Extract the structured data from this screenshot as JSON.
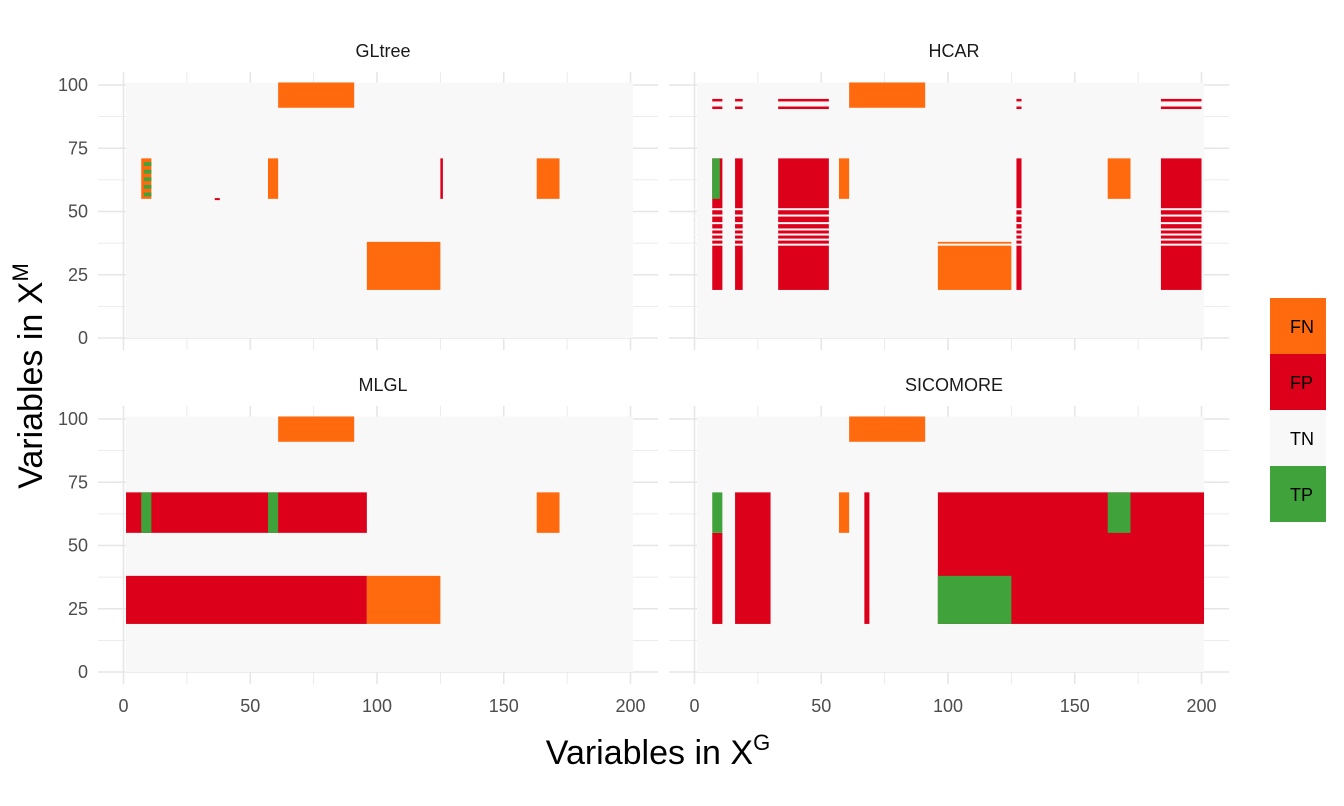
{
  "chart_data": {
    "type": "heatmap",
    "xlabel": "Variables in X",
    "xlabel_sup": "G",
    "ylabel": "Variables in X",
    "ylabel_sup": "M",
    "xlim": [
      0,
      200
    ],
    "ylim": [
      0,
      100
    ],
    "x_ticks": [
      0,
      50,
      100,
      150,
      200
    ],
    "y_ticks": [
      0,
      25,
      50,
      75,
      100
    ],
    "grid": true,
    "legend_position": "right",
    "categories": [
      "FN",
      "FP",
      "TN",
      "TP"
    ],
    "colors": {
      "FN": "#FF6A0F",
      "FP": "#DC001B",
      "TN": "#F8F8F8",
      "TP": "#3FA23A"
    },
    "panels": [
      {
        "title": "GLtree",
        "cells": [
          {
            "x0": 61,
            "x1": 91,
            "y0": 91,
            "y1": 101,
            "status": "FN"
          },
          {
            "x0": 7,
            "x1": 11,
            "y0": 55,
            "y1": 71,
            "status": "FN"
          },
          {
            "x0": 8,
            "x1": 11,
            "y0": 56,
            "y1": 57.5,
            "status": "TP"
          },
          {
            "x0": 8,
            "x1": 11,
            "y0": 59,
            "y1": 60.5,
            "status": "TP"
          },
          {
            "x0": 8,
            "x1": 11,
            "y0": 62,
            "y1": 63.5,
            "status": "TP"
          },
          {
            "x0": 8,
            "x1": 11,
            "y0": 65,
            "y1": 66.5,
            "status": "TP"
          },
          {
            "x0": 8,
            "x1": 11,
            "y0": 68,
            "y1": 69.5,
            "status": "TP"
          },
          {
            "x0": 57,
            "x1": 61,
            "y0": 55,
            "y1": 71,
            "status": "FN"
          },
          {
            "x0": 163,
            "x1": 172,
            "y0": 55,
            "y1": 71,
            "status": "FN"
          },
          {
            "x0": 125,
            "x1": 126,
            "y0": 55,
            "y1": 71,
            "status": "FP"
          },
          {
            "x0": 36,
            "x1": 38,
            "y0": 54.5,
            "y1": 55.3,
            "status": "FP"
          },
          {
            "x0": 96,
            "x1": 125,
            "y0": 19,
            "y1": 38,
            "status": "FN"
          }
        ]
      },
      {
        "title": "HCAR",
        "cells": [
          {
            "x0": 7,
            "x1": 11,
            "y0": 93.5,
            "y1": 94.5,
            "status": "FP"
          },
          {
            "x0": 7,
            "x1": 11,
            "y0": 90.5,
            "y1": 91.5,
            "status": "FP"
          },
          {
            "x0": 16,
            "x1": 19,
            "y0": 93.5,
            "y1": 94.5,
            "status": "FP"
          },
          {
            "x0": 16,
            "x1": 19,
            "y0": 90.5,
            "y1": 91.5,
            "status": "FP"
          },
          {
            "x0": 33,
            "x1": 53,
            "y0": 93.5,
            "y1": 94.5,
            "status": "FP"
          },
          {
            "x0": 33,
            "x1": 53,
            "y0": 90.5,
            "y1": 91.5,
            "status": "FP"
          },
          {
            "x0": 127,
            "x1": 129,
            "y0": 93.5,
            "y1": 94.5,
            "status": "FP"
          },
          {
            "x0": 127,
            "x1": 129,
            "y0": 90.5,
            "y1": 91.5,
            "status": "FP"
          },
          {
            "x0": 184,
            "x1": 200,
            "y0": 93.5,
            "y1": 94.5,
            "status": "FP"
          },
          {
            "x0": 184,
            "x1": 200,
            "y0": 90.5,
            "y1": 91.5,
            "status": "FP"
          },
          {
            "x0": 61,
            "x1": 91,
            "y0": 91,
            "y1": 101,
            "status": "FN"
          },
          {
            "x0": 7,
            "x1": 11,
            "y0": 19,
            "y1": 71,
            "status": "FP"
          },
          {
            "x0": 7,
            "x1": 10,
            "y0": 55,
            "y1": 71,
            "status": "TP"
          },
          {
            "x0": 16,
            "x1": 19,
            "y0": 19,
            "y1": 71,
            "status": "FP"
          },
          {
            "x0": 33,
            "x1": 53,
            "y0": 19,
            "y1": 71,
            "status": "FP"
          },
          {
            "x0": 57,
            "x1": 61,
            "y0": 55,
            "y1": 71,
            "status": "FN"
          },
          {
            "x0": 127,
            "x1": 129,
            "y0": 19,
            "y1": 71,
            "status": "FP"
          },
          {
            "x0": 163,
            "x1": 172,
            "y0": 55,
            "y1": 71,
            "status": "FN"
          },
          {
            "x0": 184,
            "x1": 200,
            "y0": 19,
            "y1": 71,
            "status": "FP"
          },
          {
            "x0": 96,
            "x1": 125,
            "y0": 19,
            "y1": 38,
            "status": "FN"
          }
        ],
        "gaps": [
          {
            "x0": 0,
            "x1": 200,
            "y0": 50.5,
            "y1": 51.3,
            "status": "TN"
          },
          {
            "x0": 0,
            "x1": 200,
            "y0": 48,
            "y1": 48.8,
            "status": "TN"
          },
          {
            "x0": 0,
            "x1": 200,
            "y0": 45,
            "y1": 45.8,
            "status": "TN"
          },
          {
            "x0": 0,
            "x1": 200,
            "y0": 42.5,
            "y1": 43.3,
            "status": "TN"
          },
          {
            "x0": 0,
            "x1": 200,
            "y0": 40.5,
            "y1": 41.3,
            "status": "TN"
          },
          {
            "x0": 0,
            "x1": 200,
            "y0": 38.5,
            "y1": 39.3,
            "status": "TN"
          },
          {
            "x0": 0,
            "x1": 200,
            "y0": 36.5,
            "y1": 37.3,
            "status": "TN"
          }
        ]
      },
      {
        "title": "MLGL",
        "cells": [
          {
            "x0": 61,
            "x1": 91,
            "y0": 91,
            "y1": 101,
            "status": "FN"
          },
          {
            "x0": 1,
            "x1": 96,
            "y0": 55,
            "y1": 71,
            "status": "FP"
          },
          {
            "x0": 7,
            "x1": 11,
            "y0": 55,
            "y1": 71,
            "status": "TP"
          },
          {
            "x0": 57,
            "x1": 61,
            "y0": 55,
            "y1": 71,
            "status": "TP"
          },
          {
            "x0": 163,
            "x1": 172,
            "y0": 55,
            "y1": 71,
            "status": "FN"
          },
          {
            "x0": 1,
            "x1": 96,
            "y0": 19,
            "y1": 38,
            "status": "FP"
          },
          {
            "x0": 96,
            "x1": 125,
            "y0": 19,
            "y1": 38,
            "status": "FN"
          }
        ]
      },
      {
        "title": "SICOMORE",
        "cells": [
          {
            "x0": 61,
            "x1": 91,
            "y0": 91,
            "y1": 101,
            "status": "FN"
          },
          {
            "x0": 7,
            "x1": 11,
            "y0": 19,
            "y1": 55,
            "status": "FP"
          },
          {
            "x0": 7,
            "x1": 11,
            "y0": 55,
            "y1": 71,
            "status": "TP"
          },
          {
            "x0": 16,
            "x1": 30,
            "y0": 19,
            "y1": 71,
            "status": "FP"
          },
          {
            "x0": 57,
            "x1": 61,
            "y0": 55,
            "y1": 71,
            "status": "FN"
          },
          {
            "x0": 67,
            "x1": 69,
            "y0": 19,
            "y1": 71,
            "status": "FP"
          },
          {
            "x0": 96,
            "x1": 201,
            "y0": 19,
            "y1": 71,
            "status": "FP"
          },
          {
            "x0": 163,
            "x1": 172,
            "y0": 55,
            "y1": 71,
            "status": "TP"
          },
          {
            "x0": 96,
            "x1": 125,
            "y0": 19,
            "y1": 38,
            "status": "TP"
          }
        ]
      }
    ]
  }
}
